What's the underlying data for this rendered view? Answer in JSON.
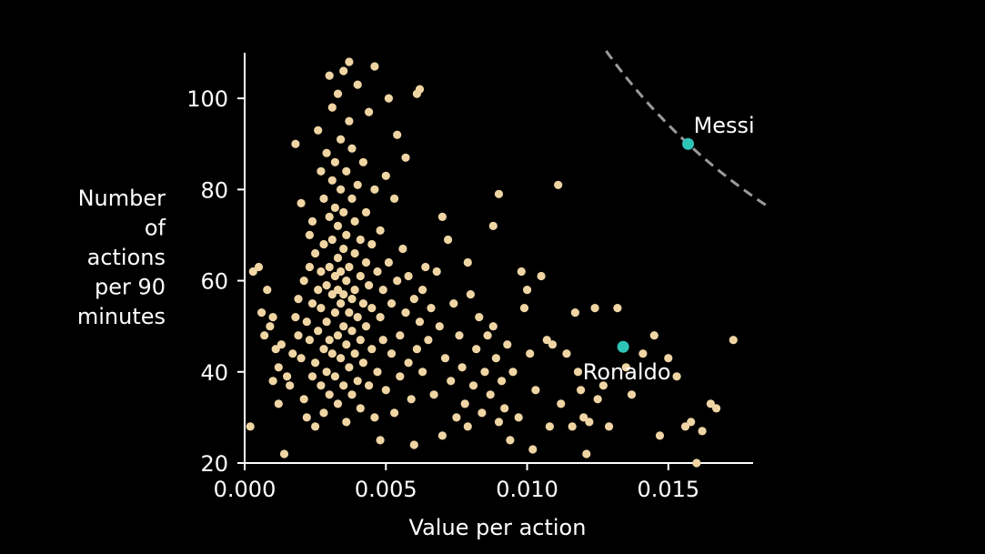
{
  "chart_data": {
    "type": "scatter",
    "xlabel": "Value per action",
    "ylabel_lines": [
      "Number",
      "of",
      "actions",
      "per 90",
      "minutes"
    ],
    "xlim": [
      0.0,
      0.018
    ],
    "ylim": [
      20,
      110
    ],
    "x_ticks": [
      {
        "value": 0.0,
        "label": "0.000"
      },
      {
        "value": 0.005,
        "label": "0.005"
      },
      {
        "value": 0.01,
        "label": "0.010"
      },
      {
        "value": 0.015,
        "label": "0.015"
      }
    ],
    "y_ticks": [
      {
        "value": 20,
        "label": "20"
      },
      {
        "value": 40,
        "label": "40"
      },
      {
        "value": 60,
        "label": "60"
      },
      {
        "value": 80,
        "label": "80"
      },
      {
        "value": 100,
        "label": "100"
      }
    ],
    "grid": false,
    "colors": {
      "points": "#f0d5a4",
      "highlight": "#2ec4b6",
      "axis": "#ffffff",
      "curve": "#9a9a9a"
    },
    "highlights": [
      {
        "label": "Messi",
        "x": 0.0157,
        "y": 90
      },
      {
        "label": "Ronaldo",
        "x": 0.0134,
        "y": 45.5
      }
    ],
    "dashed_curve": {
      "style": "dashed",
      "constant_xy": 1.413,
      "x_range": [
        0.0128,
        0.0186
      ]
    },
    "points": [
      [
        0.0002,
        28
      ],
      [
        0.0003,
        62
      ],
      [
        0.0005,
        63
      ],
      [
        0.0006,
        53
      ],
      [
        0.0007,
        48
      ],
      [
        0.0008,
        58
      ],
      [
        0.0009,
        50
      ],
      [
        0.001,
        52
      ],
      [
        0.001,
        38
      ],
      [
        0.0011,
        45
      ],
      [
        0.0012,
        41
      ],
      [
        0.0012,
        33
      ],
      [
        0.0013,
        46
      ],
      [
        0.0014,
        22
      ],
      [
        0.0015,
        39
      ],
      [
        0.0016,
        37
      ],
      [
        0.0017,
        44
      ],
      [
        0.0018,
        90
      ],
      [
        0.0018,
        52
      ],
      [
        0.0019,
        56
      ],
      [
        0.0019,
        48
      ],
      [
        0.002,
        77
      ],
      [
        0.002,
        43
      ],
      [
        0.0021,
        34
      ],
      [
        0.0021,
        60
      ],
      [
        0.0022,
        51
      ],
      [
        0.0022,
        30
      ],
      [
        0.0023,
        70
      ],
      [
        0.0023,
        63
      ],
      [
        0.0023,
        47
      ],
      [
        0.0024,
        39
      ],
      [
        0.0024,
        55
      ],
      [
        0.0024,
        73
      ],
      [
        0.0025,
        66
      ],
      [
        0.0025,
        42
      ],
      [
        0.0025,
        28
      ],
      [
        0.0026,
        58
      ],
      [
        0.0026,
        93
      ],
      [
        0.0026,
        49
      ],
      [
        0.0027,
        84
      ],
      [
        0.0027,
        62
      ],
      [
        0.0027,
        37
      ],
      [
        0.0027,
        54
      ],
      [
        0.0028,
        78
      ],
      [
        0.0028,
        45
      ],
      [
        0.0028,
        68
      ],
      [
        0.0028,
        31
      ],
      [
        0.0029,
        59
      ],
      [
        0.0029,
        88
      ],
      [
        0.0029,
        51
      ],
      [
        0.0029,
        40
      ],
      [
        0.003,
        105
      ],
      [
        0.003,
        74
      ],
      [
        0.003,
        63
      ],
      [
        0.003,
        47
      ],
      [
        0.003,
        35
      ],
      [
        0.0031,
        82
      ],
      [
        0.0031,
        57
      ],
      [
        0.0031,
        69
      ],
      [
        0.0031,
        44
      ],
      [
        0.0031,
        98
      ],
      [
        0.0032,
        61
      ],
      [
        0.0032,
        53
      ],
      [
        0.0032,
        76
      ],
      [
        0.0032,
        39
      ],
      [
        0.0032,
        86
      ],
      [
        0.0033,
        65
      ],
      [
        0.0033,
        48
      ],
      [
        0.0033,
        58
      ],
      [
        0.0033,
        72
      ],
      [
        0.0033,
        33
      ],
      [
        0.0033,
        101
      ],
      [
        0.0034,
        55
      ],
      [
        0.0034,
        80
      ],
      [
        0.0034,
        43
      ],
      [
        0.0034,
        62
      ],
      [
        0.0034,
        91
      ],
      [
        0.0035,
        50
      ],
      [
        0.0035,
        67
      ],
      [
        0.0035,
        37
      ],
      [
        0.0035,
        75
      ],
      [
        0.0035,
        57
      ],
      [
        0.0035,
        106
      ],
      [
        0.0036,
        84
      ],
      [
        0.0036,
        46
      ],
      [
        0.0036,
        60
      ],
      [
        0.0036,
        29
      ],
      [
        0.0036,
        70
      ],
      [
        0.0037,
        53
      ],
      [
        0.0037,
        95
      ],
      [
        0.0037,
        41
      ],
      [
        0.0037,
        63
      ],
      [
        0.0037,
        108
      ],
      [
        0.0038,
        78
      ],
      [
        0.0038,
        49
      ],
      [
        0.0038,
        56
      ],
      [
        0.0038,
        35
      ],
      [
        0.0038,
        89
      ],
      [
        0.0039,
        66
      ],
      [
        0.0039,
        44
      ],
      [
        0.0039,
        58
      ],
      [
        0.0039,
        73
      ],
      [
        0.004,
        52
      ],
      [
        0.004,
        38
      ],
      [
        0.004,
        81
      ],
      [
        0.004,
        103
      ],
      [
        0.0041,
        61
      ],
      [
        0.0041,
        47
      ],
      [
        0.0041,
        69
      ],
      [
        0.0041,
        32
      ],
      [
        0.0042,
        55
      ],
      [
        0.0042,
        86
      ],
      [
        0.0042,
        42
      ],
      [
        0.0043,
        64
      ],
      [
        0.0043,
        75
      ],
      [
        0.0043,
        50
      ],
      [
        0.0044,
        37
      ],
      [
        0.0044,
        59
      ],
      [
        0.0044,
        97
      ],
      [
        0.0045,
        68
      ],
      [
        0.0045,
        45
      ],
      [
        0.0045,
        54
      ],
      [
        0.0046,
        30
      ],
      [
        0.0046,
        80
      ],
      [
        0.0046,
        107
      ],
      [
        0.0047,
        62
      ],
      [
        0.0047,
        40
      ],
      [
        0.0048,
        52
      ],
      [
        0.0048,
        71
      ],
      [
        0.0048,
        25
      ],
      [
        0.0049,
        47
      ],
      [
        0.0049,
        58
      ],
      [
        0.005,
        83
      ],
      [
        0.005,
        36
      ],
      [
        0.0051,
        64
      ],
      [
        0.0051,
        100
      ],
      [
        0.0052,
        44
      ],
      [
        0.0052,
        55
      ],
      [
        0.0053,
        78
      ],
      [
        0.0053,
        31
      ],
      [
        0.0054,
        60
      ],
      [
        0.0054,
        92
      ],
      [
        0.0055,
        48
      ],
      [
        0.0055,
        39
      ],
      [
        0.0056,
        67
      ],
      [
        0.0057,
        53
      ],
      [
        0.0057,
        87
      ],
      [
        0.0058,
        42
      ],
      [
        0.0058,
        61
      ],
      [
        0.0059,
        34
      ],
      [
        0.006,
        56
      ],
      [
        0.006,
        24
      ],
      [
        0.0061,
        101
      ],
      [
        0.0061,
        45
      ],
      [
        0.0062,
        51
      ],
      [
        0.0062,
        102
      ],
      [
        0.0063,
        58
      ],
      [
        0.0063,
        40
      ],
      [
        0.0064,
        63
      ],
      [
        0.0065,
        47
      ],
      [
        0.0066,
        54
      ],
      [
        0.0067,
        35
      ],
      [
        0.0068,
        62
      ],
      [
        0.0069,
        50
      ],
      [
        0.007,
        74
      ],
      [
        0.007,
        26
      ],
      [
        0.0071,
        43
      ],
      [
        0.0072,
        69
      ],
      [
        0.0073,
        38
      ],
      [
        0.0074,
        55
      ],
      [
        0.0075,
        30
      ],
      [
        0.0076,
        48
      ],
      [
        0.0077,
        41
      ],
      [
        0.0078,
        33
      ],
      [
        0.0079,
        64
      ],
      [
        0.0079,
        28
      ],
      [
        0.008,
        57
      ],
      [
        0.0081,
        37
      ],
      [
        0.0082,
        45
      ],
      [
        0.0083,
        52
      ],
      [
        0.0084,
        31
      ],
      [
        0.0085,
        40
      ],
      [
        0.0086,
        48
      ],
      [
        0.0087,
        35
      ],
      [
        0.0088,
        72
      ],
      [
        0.0088,
        50
      ],
      [
        0.0089,
        43
      ],
      [
        0.009,
        79
      ],
      [
        0.009,
        29
      ],
      [
        0.0091,
        38
      ],
      [
        0.0092,
        32
      ],
      [
        0.0093,
        46
      ],
      [
        0.0094,
        25
      ],
      [
        0.0095,
        40
      ],
      [
        0.0097,
        30
      ],
      [
        0.0098,
        62
      ],
      [
        0.0099,
        54
      ],
      [
        0.01,
        58
      ],
      [
        0.0101,
        44
      ],
      [
        0.0102,
        23
      ],
      [
        0.0103,
        36
      ],
      [
        0.0105,
        61
      ],
      [
        0.0107,
        47
      ],
      [
        0.0108,
        28
      ],
      [
        0.0109,
        46
      ],
      [
        0.0111,
        81
      ],
      [
        0.0112,
        33
      ],
      [
        0.0114,
        44
      ],
      [
        0.0116,
        28
      ],
      [
        0.0117,
        53
      ],
      [
        0.0118,
        40
      ],
      [
        0.0119,
        36
      ],
      [
        0.012,
        30
      ],
      [
        0.0121,
        22
      ],
      [
        0.0122,
        29
      ],
      [
        0.0124,
        54
      ],
      [
        0.0125,
        34
      ],
      [
        0.0127,
        37
      ],
      [
        0.0129,
        28
      ],
      [
        0.0132,
        54
      ],
      [
        0.0135,
        41
      ],
      [
        0.0137,
        35
      ],
      [
        0.0141,
        44
      ],
      [
        0.0145,
        48
      ],
      [
        0.0147,
        26
      ],
      [
        0.015,
        43
      ],
      [
        0.0153,
        39
      ],
      [
        0.0156,
        28
      ],
      [
        0.0158,
        29
      ],
      [
        0.016,
        20
      ],
      [
        0.0162,
        27
      ],
      [
        0.0165,
        33
      ],
      [
        0.0167,
        32
      ],
      [
        0.0173,
        47
      ]
    ]
  }
}
